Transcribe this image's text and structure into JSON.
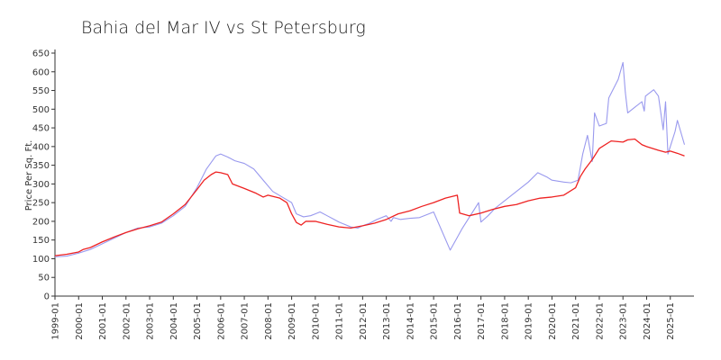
{
  "chart_data": {
    "type": "line",
    "title": "Bahia del Mar IV vs St Petersburg",
    "xlabel": "",
    "ylabel": "Price Per Sq. Ft.",
    "xlim": [
      1999.0,
      2026.0
    ],
    "ylim": [
      0,
      650
    ],
    "grid": false,
    "y_ticks": [
      0,
      50,
      100,
      150,
      200,
      250,
      300,
      350,
      400,
      450,
      500,
      550,
      600,
      650
    ],
    "x_tick_labels": [
      "1999-01",
      "2000-01",
      "2001-01",
      "2002-01",
      "2003-01",
      "2004-01",
      "2005-01",
      "2006-01",
      "2007-01",
      "2008-01",
      "2009-01",
      "2010-01",
      "2011-01",
      "2012-01",
      "2013-01",
      "2014-01",
      "2015-01",
      "2016-01",
      "2017-01",
      "2018-01",
      "2019-01",
      "2020-01",
      "2021-01",
      "2022-01",
      "2023-01",
      "2024-01",
      "2025-01"
    ],
    "series": [
      {
        "color": "#9999ee",
        "points": [
          [
            1999.0,
            105
          ],
          [
            1999.5,
            107
          ],
          [
            2000.0,
            115
          ],
          [
            2000.5,
            125
          ],
          [
            2001.0,
            140
          ],
          [
            2001.5,
            155
          ],
          [
            2002.0,
            170
          ],
          [
            2002.5,
            182
          ],
          [
            2003.0,
            185
          ],
          [
            2003.5,
            195
          ],
          [
            2004.0,
            215
          ],
          [
            2004.5,
            240
          ],
          [
            2005.0,
            290
          ],
          [
            2005.4,
            340
          ],
          [
            2005.8,
            375
          ],
          [
            2006.0,
            380
          ],
          [
            2006.3,
            372
          ],
          [
            2006.6,
            362
          ],
          [
            2007.0,
            355
          ],
          [
            2007.4,
            340
          ],
          [
            2007.8,
            310
          ],
          [
            2008.2,
            280
          ],
          [
            2008.6,
            265
          ],
          [
            2009.0,
            250
          ],
          [
            2009.2,
            220
          ],
          [
            2009.5,
            212
          ],
          [
            2009.8,
            215
          ],
          [
            2010.0,
            220
          ],
          [
            2010.2,
            225
          ],
          [
            2010.5,
            215
          ],
          [
            2010.8,
            205
          ],
          [
            2011.0,
            198
          ],
          [
            2011.5,
            185
          ],
          [
            2011.8,
            182
          ],
          [
            2012.0,
            188
          ],
          [
            2012.3,
            195
          ],
          [
            2012.6,
            205
          ],
          [
            2013.0,
            215
          ],
          [
            2013.2,
            200
          ],
          [
            2013.3,
            210
          ],
          [
            2013.6,
            205
          ],
          [
            2014.0,
            208
          ],
          [
            2014.4,
            210
          ],
          [
            2014.8,
            220
          ],
          [
            2015.0,
            225
          ],
          [
            2015.7,
            123
          ],
          [
            2016.2,
            180
          ],
          [
            2016.8,
            240
          ],
          [
            2016.9,
            250
          ],
          [
            2017.0,
            198
          ],
          [
            2017.3,
            215
          ],
          [
            2017.6,
            235
          ],
          [
            2018.0,
            255
          ],
          [
            2018.5,
            280
          ],
          [
            2019.0,
            305
          ],
          [
            2019.4,
            330
          ],
          [
            2019.8,
            318
          ],
          [
            2020.0,
            310
          ],
          [
            2020.5,
            305
          ],
          [
            2020.8,
            303
          ],
          [
            2021.1,
            310
          ],
          [
            2021.3,
            380
          ],
          [
            2021.5,
            430
          ],
          [
            2021.7,
            360
          ],
          [
            2021.8,
            490
          ],
          [
            2022.0,
            455
          ],
          [
            2022.3,
            462
          ],
          [
            2022.4,
            530
          ],
          [
            2022.8,
            580
          ],
          [
            2023.0,
            625
          ],
          [
            2023.1,
            545
          ],
          [
            2023.2,
            490
          ],
          [
            2023.5,
            505
          ],
          [
            2023.8,
            520
          ],
          [
            2023.9,
            495
          ],
          [
            2023.95,
            535
          ],
          [
            2024.3,
            552
          ],
          [
            2024.5,
            535
          ],
          [
            2024.7,
            445
          ],
          [
            2024.8,
            520
          ],
          [
            2024.9,
            380
          ],
          [
            2025.2,
            440
          ],
          [
            2025.3,
            470
          ],
          [
            2025.6,
            405
          ]
        ]
      },
      {
        "color": "#ee2222",
        "points": [
          [
            1999.0,
            108
          ],
          [
            1999.5,
            112
          ],
          [
            2000.0,
            118
          ],
          [
            2000.2,
            125
          ],
          [
            2000.5,
            130
          ],
          [
            2001.0,
            145
          ],
          [
            2001.5,
            158
          ],
          [
            2002.0,
            170
          ],
          [
            2002.5,
            180
          ],
          [
            2003.0,
            188
          ],
          [
            2003.5,
            198
          ],
          [
            2004.0,
            220
          ],
          [
            2004.5,
            245
          ],
          [
            2005.0,
            285
          ],
          [
            2005.3,
            310
          ],
          [
            2005.6,
            325
          ],
          [
            2005.8,
            332
          ],
          [
            2006.0,
            330
          ],
          [
            2006.3,
            325
          ],
          [
            2006.5,
            300
          ],
          [
            2007.0,
            288
          ],
          [
            2007.5,
            275
          ],
          [
            2007.8,
            265
          ],
          [
            2008.0,
            270
          ],
          [
            2008.5,
            262
          ],
          [
            2008.8,
            250
          ],
          [
            2009.0,
            220
          ],
          [
            2009.2,
            197
          ],
          [
            2009.4,
            190
          ],
          [
            2009.6,
            200
          ],
          [
            2010.0,
            200
          ],
          [
            2010.5,
            192
          ],
          [
            2011.0,
            185
          ],
          [
            2011.5,
            182
          ],
          [
            2012.0,
            188
          ],
          [
            2012.5,
            195
          ],
          [
            2013.0,
            205
          ],
          [
            2013.5,
            220
          ],
          [
            2014.0,
            228
          ],
          [
            2014.5,
            240
          ],
          [
            2015.0,
            250
          ],
          [
            2015.5,
            262
          ],
          [
            2016.0,
            270
          ],
          [
            2016.1,
            222
          ],
          [
            2016.5,
            215
          ],
          [
            2017.0,
            222
          ],
          [
            2017.5,
            232
          ],
          [
            2018.0,
            240
          ],
          [
            2018.5,
            245
          ],
          [
            2019.0,
            255
          ],
          [
            2019.5,
            262
          ],
          [
            2020.0,
            265
          ],
          [
            2020.5,
            270
          ],
          [
            2021.0,
            290
          ],
          [
            2021.2,
            320
          ],
          [
            2021.4,
            340
          ],
          [
            2021.7,
            365
          ],
          [
            2022.0,
            395
          ],
          [
            2022.5,
            415
          ],
          [
            2023.0,
            412
          ],
          [
            2023.2,
            418
          ],
          [
            2023.5,
            420
          ],
          [
            2023.8,
            405
          ],
          [
            2024.0,
            400
          ],
          [
            2024.5,
            390
          ],
          [
            2024.8,
            385
          ],
          [
            2025.0,
            388
          ],
          [
            2025.3,
            382
          ],
          [
            2025.6,
            375
          ]
        ]
      }
    ]
  }
}
